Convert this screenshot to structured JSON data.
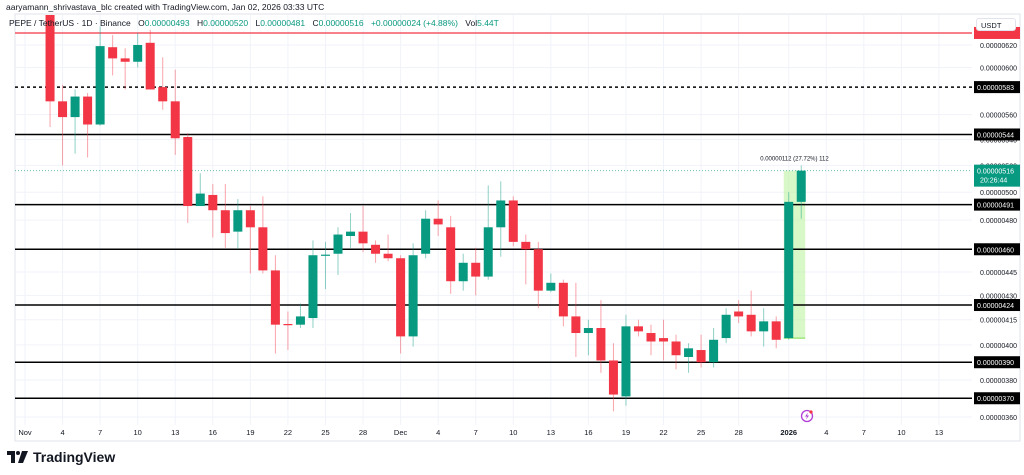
{
  "header": {
    "attribution": "aaryamann_shrivastava_blc created with TradingView.com, Jan 02, 2026 03:33 UTC"
  },
  "legend": {
    "symbol": "PEPE / TetherUS · 1D · Binance",
    "open_label": "O",
    "open": "0.00000493",
    "high_label": "H",
    "high": "0.00000520",
    "low_label": "L",
    "low": "0.00000481",
    "close_label": "C",
    "close": "0.00000516",
    "change": "+0.00000024 (+4.88%)",
    "vol_label": "Vol",
    "vol": "5.44T"
  },
  "currency": "USDT",
  "footer": {
    "logo_text": "TradingView"
  },
  "colors": {
    "up": "#089981",
    "down": "#f23645",
    "level": "#000000",
    "red_level": "#f23645",
    "measure": "#b8f29a",
    "alert_icon": "#b13fd6"
  },
  "chart_data": {
    "type": "candlestick",
    "scale": "log",
    "interval": "1D",
    "ylim": [
      3.6e-06,
      6.2e-06
    ],
    "grid": true,
    "x_ticks": [
      {
        "date": "2025-11-01",
        "label": "Nov"
      },
      {
        "date": "2025-11-04",
        "label": "4"
      },
      {
        "date": "2025-11-07",
        "label": "7"
      },
      {
        "date": "2025-11-10",
        "label": "10"
      },
      {
        "date": "2025-11-13",
        "label": "13"
      },
      {
        "date": "2025-11-16",
        "label": "16"
      },
      {
        "date": "2025-11-19",
        "label": "19"
      },
      {
        "date": "2025-11-22",
        "label": "22"
      },
      {
        "date": "2025-11-25",
        "label": "25"
      },
      {
        "date": "2025-11-28",
        "label": "28"
      },
      {
        "date": "2025-12-01",
        "label": "Dec"
      },
      {
        "date": "2025-12-04",
        "label": "4"
      },
      {
        "date": "2025-12-07",
        "label": "7"
      },
      {
        "date": "2025-12-10",
        "label": "10"
      },
      {
        "date": "2025-12-13",
        "label": "13"
      },
      {
        "date": "2025-12-16",
        "label": "16"
      },
      {
        "date": "2025-12-19",
        "label": "19"
      },
      {
        "date": "2025-12-22",
        "label": "22"
      },
      {
        "date": "2025-12-25",
        "label": "25"
      },
      {
        "date": "2025-12-28",
        "label": "28"
      },
      {
        "date": "2026-01-01",
        "label": "2026"
      },
      {
        "date": "2026-01-04",
        "label": "4"
      },
      {
        "date": "2026-01-07",
        "label": "7"
      },
      {
        "date": "2026-01-10",
        "label": "10"
      },
      {
        "date": "2026-01-13",
        "label": "13"
      }
    ],
    "y_ticks": [
      {
        "value": 6.2e-06,
        "label": "0.00000620"
      },
      {
        "value": 6e-06,
        "label": "0.00000600"
      },
      {
        "value": 5.6e-06,
        "label": "0.00000560"
      },
      {
        "value": 5.4e-06,
        "label": "0.00000540"
      },
      {
        "value": 5.2e-06,
        "label": "0.00000520"
      },
      {
        "value": 5e-06,
        "label": "0.00000500"
      },
      {
        "value": 4.8e-06,
        "label": "0.00000480"
      },
      {
        "value": 4.45e-06,
        "label": "0.00000445"
      },
      {
        "value": 4.3e-06,
        "label": "0.00000430"
      },
      {
        "value": 4.15e-06,
        "label": "0.00000415"
      },
      {
        "value": 4e-06,
        "label": "0.00000400"
      },
      {
        "value": 3.8e-06,
        "label": "0.00000380"
      },
      {
        "value": 3.6e-06,
        "label": "0.00000360"
      }
    ],
    "levels": [
      {
        "value": 6.31e-06,
        "label": "",
        "style": "solid",
        "color": "red"
      },
      {
        "value": 5.83e-06,
        "label": "0.00000583",
        "style": "dashed",
        "color": "black"
      },
      {
        "value": 5.44e-06,
        "label": "0.00000544",
        "style": "solid",
        "color": "black"
      },
      {
        "value": 4.91e-06,
        "label": "0.00000491",
        "style": "solid",
        "color": "black"
      },
      {
        "value": 4.6e-06,
        "label": "0.00000460",
        "style": "solid",
        "color": "black"
      },
      {
        "value": 4.24e-06,
        "label": "0.00000424",
        "style": "solid",
        "color": "black"
      },
      {
        "value": 3.9e-06,
        "label": "0.00000390",
        "style": "solid",
        "color": "black"
      },
      {
        "value": 3.7e-06,
        "label": "0.00000370",
        "style": "solid",
        "color": "black"
      }
    ],
    "current_price": {
      "value": 5.16e-06,
      "label": "0.00000516",
      "countdown": "20:26:44"
    },
    "measure": {
      "from": 4.04e-06,
      "to": 5.16e-06,
      "start": "2026-01-01",
      "end": "2026-01-02",
      "label": "0.00000112 (27.72%) 112"
    },
    "candles": [
      {
        "date": "2025-11-03",
        "o": 6.6e-06,
        "h": 6.65e-06,
        "l": 5.5e-06,
        "c": 5.71e-06
      },
      {
        "date": "2025-11-04",
        "o": 5.71e-06,
        "h": 5.85e-06,
        "l": 5.2e-06,
        "c": 5.58e-06
      },
      {
        "date": "2025-11-05",
        "o": 5.58e-06,
        "h": 5.81e-06,
        "l": 5.29e-06,
        "c": 5.75e-06
      },
      {
        "date": "2025-11-06",
        "o": 5.75e-06,
        "h": 5.78e-06,
        "l": 5.26e-06,
        "c": 5.52e-06
      },
      {
        "date": "2025-11-07",
        "o": 5.52e-06,
        "h": 6.37e-06,
        "l": 5.51e-06,
        "c": 6.19e-06
      },
      {
        "date": "2025-11-08",
        "o": 6.18e-06,
        "h": 6.29e-06,
        "l": 5.93e-06,
        "c": 6.08e-06
      },
      {
        "date": "2025-11-09",
        "o": 6.08e-06,
        "h": 6.17e-06,
        "l": 5.81e-06,
        "c": 6.05e-06
      },
      {
        "date": "2025-11-10",
        "o": 6.05e-06,
        "h": 6.31e-06,
        "l": 6e-06,
        "c": 6.2e-06
      },
      {
        "date": "2025-11-11",
        "o": 6.22e-06,
        "h": 6.34e-06,
        "l": 5.81e-06,
        "c": 5.81e-06
      },
      {
        "date": "2025-11-12",
        "o": 5.83e-06,
        "h": 6.09e-06,
        "l": 5.64e-06,
        "c": 5.71e-06
      },
      {
        "date": "2025-11-13",
        "o": 5.71e-06,
        "h": 5.98e-06,
        "l": 5.28e-06,
        "c": 5.41e-06
      },
      {
        "date": "2025-11-14",
        "o": 5.42e-06,
        "h": 5.45e-06,
        "l": 4.78e-06,
        "c": 4.9e-06
      },
      {
        "date": "2025-11-15",
        "o": 4.9e-06,
        "h": 5.14e-06,
        "l": 4.9e-06,
        "c": 4.99e-06
      },
      {
        "date": "2025-11-16",
        "o": 4.98e-06,
        "h": 5.06e-06,
        "l": 4.68e-06,
        "c": 4.87e-06
      },
      {
        "date": "2025-11-17",
        "o": 4.87e-06,
        "h": 5.06e-06,
        "l": 4.61e-06,
        "c": 4.71e-06
      },
      {
        "date": "2025-11-18",
        "o": 4.72e-06,
        "h": 4.95e-06,
        "l": 4.6e-06,
        "c": 4.87e-06
      },
      {
        "date": "2025-11-19",
        "o": 4.87e-06,
        "h": 4.9e-06,
        "l": 4.44e-06,
        "c": 4.75e-06
      },
      {
        "date": "2025-11-20",
        "o": 4.75e-06,
        "h": 4.97e-06,
        "l": 4.44e-06,
        "c": 4.46e-06
      },
      {
        "date": "2025-11-21",
        "o": 4.46e-06,
        "h": 4.56e-06,
        "l": 3.95e-06,
        "c": 4.12e-06
      },
      {
        "date": "2025-11-22",
        "o": 4.124e-06,
        "h": 4.2e-06,
        "l": 3.97e-06,
        "c": 4.118e-06
      },
      {
        "date": "2025-11-23",
        "o": 4.12e-06,
        "h": 4.25e-06,
        "l": 4.1e-06,
        "c": 4.17e-06
      },
      {
        "date": "2025-11-24",
        "o": 4.16e-06,
        "h": 4.66e-06,
        "l": 4.1e-06,
        "c": 4.56e-06
      },
      {
        "date": "2025-11-25",
        "o": 4.556e-06,
        "h": 4.65e-06,
        "l": 4.34e-06,
        "c": 4.564e-06
      },
      {
        "date": "2025-11-26",
        "o": 4.57e-06,
        "h": 4.75e-06,
        "l": 4.43e-06,
        "c": 4.7e-06
      },
      {
        "date": "2025-11-27",
        "o": 4.69e-06,
        "h": 4.85e-06,
        "l": 4.61e-06,
        "c": 4.72e-06
      },
      {
        "date": "2025-11-28",
        "o": 4.72e-06,
        "h": 4.9e-06,
        "l": 4.58e-06,
        "c": 4.64e-06
      },
      {
        "date": "2025-11-29",
        "o": 4.63e-06,
        "h": 4.66e-06,
        "l": 4.51e-06,
        "c": 4.57e-06
      },
      {
        "date": "2025-11-30",
        "o": 4.57e-06,
        "h": 4.7e-06,
        "l": 4.52e-06,
        "c": 4.54e-06
      },
      {
        "date": "2025-12-01",
        "o": 4.54e-06,
        "h": 4.56e-06,
        "l": 3.95e-06,
        "c": 4.05e-06
      },
      {
        "date": "2025-12-02",
        "o": 4.05e-06,
        "h": 4.64e-06,
        "l": 3.99e-06,
        "c": 4.56e-06
      },
      {
        "date": "2025-12-03",
        "o": 4.57e-06,
        "h": 4.87e-06,
        "l": 4.54e-06,
        "c": 4.81e-06
      },
      {
        "date": "2025-12-04",
        "o": 4.81e-06,
        "h": 4.94e-06,
        "l": 4.69e-06,
        "c": 4.77e-06
      },
      {
        "date": "2025-12-05",
        "o": 4.75e-06,
        "h": 4.83e-06,
        "l": 4.31e-06,
        "c": 4.39e-06
      },
      {
        "date": "2025-12-06",
        "o": 4.39e-06,
        "h": 4.57e-06,
        "l": 4.33e-06,
        "c": 4.51e-06
      },
      {
        "date": "2025-12-07",
        "o": 4.51e-06,
        "h": 4.61e-06,
        "l": 4.3e-06,
        "c": 4.42e-06
      },
      {
        "date": "2025-12-08",
        "o": 4.42e-06,
        "h": 5.05e-06,
        "l": 4.4e-06,
        "c": 4.75e-06
      },
      {
        "date": "2025-12-09",
        "o": 4.75e-06,
        "h": 5.08e-06,
        "l": 4.55e-06,
        "c": 4.94e-06
      },
      {
        "date": "2025-12-10",
        "o": 4.94e-06,
        "h": 4.97e-06,
        "l": 4.62e-06,
        "c": 4.65e-06
      },
      {
        "date": "2025-12-11",
        "o": 4.65e-06,
        "h": 4.7e-06,
        "l": 4.37e-06,
        "c": 4.6e-06
      },
      {
        "date": "2025-12-12",
        "o": 4.6e-06,
        "h": 4.65e-06,
        "l": 4.22e-06,
        "c": 4.33e-06
      },
      {
        "date": "2025-12-13",
        "o": 4.33e-06,
        "h": 4.44e-06,
        "l": 4.32e-06,
        "c": 4.38e-06
      },
      {
        "date": "2025-12-14",
        "o": 4.38e-06,
        "h": 4.4e-06,
        "l": 4.11e-06,
        "c": 4.17e-06
      },
      {
        "date": "2025-12-15",
        "o": 4.17e-06,
        "h": 4.38e-06,
        "l": 3.93e-06,
        "c": 4.07e-06
      },
      {
        "date": "2025-12-16",
        "o": 4.07e-06,
        "h": 4.15e-06,
        "l": 3.94e-06,
        "c": 4.1e-06
      },
      {
        "date": "2025-12-17",
        "o": 4.1e-06,
        "h": 4.27e-06,
        "l": 3.84e-06,
        "c": 3.91e-06
      },
      {
        "date": "2025-12-18",
        "o": 3.91e-06,
        "h": 4.01e-06,
        "l": 3.63e-06,
        "c": 3.72e-06
      },
      {
        "date": "2025-12-19",
        "o": 3.71e-06,
        "h": 4.18e-06,
        "l": 3.66e-06,
        "c": 4.11e-06
      },
      {
        "date": "2025-12-20",
        "o": 4.11e-06,
        "h": 4.15e-06,
        "l": 4.05e-06,
        "c": 4.08e-06
      },
      {
        "date": "2025-12-21",
        "o": 4.07e-06,
        "h": 4.12e-06,
        "l": 3.94e-06,
        "c": 4.02e-06
      },
      {
        "date": "2025-12-22",
        "o": 4.04e-06,
        "h": 4.15e-06,
        "l": 3.91e-06,
        "c": 4.02e-06
      },
      {
        "date": "2025-12-23",
        "o": 4.02e-06,
        "h": 4.06e-06,
        "l": 3.86e-06,
        "c": 3.94e-06
      },
      {
        "date": "2025-12-24",
        "o": 3.93e-06,
        "h": 4.01e-06,
        "l": 3.84e-06,
        "c": 3.98e-06
      },
      {
        "date": "2025-12-25",
        "o": 3.97e-06,
        "h": 4.06e-06,
        "l": 3.87e-06,
        "c": 3.9e-06
      },
      {
        "date": "2025-12-26",
        "o": 3.9e-06,
        "h": 4.1e-06,
        "l": 3.87e-06,
        "c": 4.03e-06
      },
      {
        "date": "2025-12-27",
        "o": 4.04e-06,
        "h": 4.22e-06,
        "l": 4.01e-06,
        "c": 4.18e-06
      },
      {
        "date": "2025-12-28",
        "o": 4.2e-06,
        "h": 4.27e-06,
        "l": 4.13e-06,
        "c": 4.17e-06
      },
      {
        "date": "2025-12-29",
        "o": 4.18e-06,
        "h": 4.33e-06,
        "l": 4.05e-06,
        "c": 4.08e-06
      },
      {
        "date": "2025-12-30",
        "o": 4.08e-06,
        "h": 4.22e-06,
        "l": 3.99e-06,
        "c": 4.14e-06
      },
      {
        "date": "2025-12-31",
        "o": 4.14e-06,
        "h": 4.17e-06,
        "l": 3.98e-06,
        "c": 4.03e-06
      },
      {
        "date": "2026-01-01",
        "o": 4.04e-06,
        "h": 5e-06,
        "l": 4.03e-06,
        "c": 4.93e-06
      },
      {
        "date": "2026-01-02",
        "o": 4.93e-06,
        "h": 5.2e-06,
        "l": 4.81e-06,
        "c": 5.16e-06
      }
    ]
  }
}
